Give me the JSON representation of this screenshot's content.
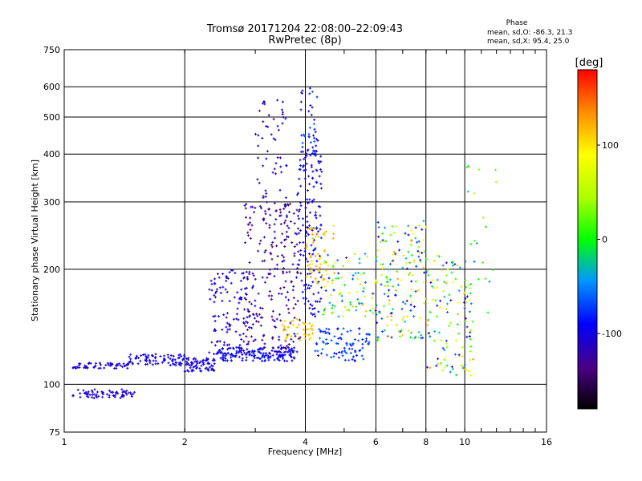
{
  "chart_data": {
    "type": "scatter",
    "title": "Tromsø 20171204 22:08:00–22:09:43",
    "subtitle": "RwPretec (8p)",
    "xlabel": "Frequency [MHz]",
    "ylabel": "Stationary phase Virtual Height [km]",
    "xscale": "log",
    "yscale": "log",
    "xlim": [
      1,
      16
    ],
    "ylim": [
      75,
      750
    ],
    "xticks": [
      1,
      2,
      4,
      6,
      8,
      10,
      16
    ],
    "yticks": [
      75,
      100,
      200,
      300,
      400,
      500,
      600,
      750
    ],
    "grid": true,
    "stats": {
      "heading": "Phase",
      "line_o": "mean, sd,O: -86.3, 21.3",
      "line_x": "mean, sd,X:  95.4, 25.0"
    },
    "colorbar": {
      "label": "[deg]",
      "ticks": [
        100,
        0,
        -100
      ],
      "range": [
        -180,
        180
      ]
    },
    "point_groups": [
      {
        "x_range": [
          1.05,
          1.5
        ],
        "y_range": [
          92,
          97
        ],
        "phase": [
          -115,
          -100
        ],
        "count": 70
      },
      {
        "x_range": [
          1.05,
          1.45
        ],
        "y_range": [
          110,
          114
        ],
        "phase": [
          -115,
          -100
        ],
        "count": 60
      },
      {
        "x_range": [
          1.45,
          2.0
        ],
        "y_range": [
          112,
          120
        ],
        "phase": [
          -110,
          -95
        ],
        "count": 80
      },
      {
        "x_range": [
          2.0,
          2.4
        ],
        "y_range": [
          108,
          118
        ],
        "phase": [
          -110,
          -95
        ],
        "count": 70
      },
      {
        "x_range": [
          2.4,
          3.8
        ],
        "y_range": [
          115,
          125
        ],
        "phase": [
          -105,
          -80
        ],
        "count": 160
      },
      {
        "x_range": [
          2.3,
          3.0
        ],
        "y_range": [
          120,
          200
        ],
        "phase": [
          -120,
          -90
        ],
        "count": 120
      },
      {
        "x_range": [
          2.8,
          3.9
        ],
        "y_range": [
          120,
          300
        ],
        "phase": [
          -150,
          -110
        ],
        "count": 220
      },
      {
        "x_range": [
          3.0,
          3.6
        ],
        "y_range": [
          250,
          560
        ],
        "phase": [
          -130,
          -100
        ],
        "count": 60
      },
      {
        "x_range": [
          3.8,
          4.4
        ],
        "y_range": [
          150,
          420
        ],
        "phase": [
          -120,
          -80
        ],
        "count": 160
      },
      {
        "x_range": [
          3.9,
          4.3
        ],
        "y_range": [
          400,
          600
        ],
        "phase": [
          -110,
          -60
        ],
        "count": 35
      },
      {
        "x_range": [
          4.0,
          4.8
        ],
        "y_range": [
          180,
          260
        ],
        "phase": [
          90,
          130
        ],
        "count": 60
      },
      {
        "x_range": [
          3.5,
          4.2
        ],
        "y_range": [
          130,
          150
        ],
        "phase": [
          100,
          120
        ],
        "count": 40
      },
      {
        "x_range": [
          4.2,
          5.8
        ],
        "y_range": [
          115,
          140
        ],
        "phase": [
          -90,
          -60
        ],
        "count": 90
      },
      {
        "x_range": [
          4.4,
          6.0
        ],
        "y_range": [
          150,
          220
        ],
        "phase": [
          -90,
          120
        ],
        "count": 80
      },
      {
        "x_range": [
          6.0,
          8.0
        ],
        "y_range": [
          130,
          270
        ],
        "phase": [
          -120,
          130
        ],
        "count": 160
      },
      {
        "x_range": [
          8.0,
          10.5
        ],
        "y_range": [
          105,
          220
        ],
        "phase": [
          -130,
          130
        ],
        "count": 120
      },
      {
        "x_range": [
          10.0,
          12.0
        ],
        "y_range": [
          140,
          380
        ],
        "phase": [
          -60,
          60
        ],
        "count": 25
      }
    ]
  }
}
